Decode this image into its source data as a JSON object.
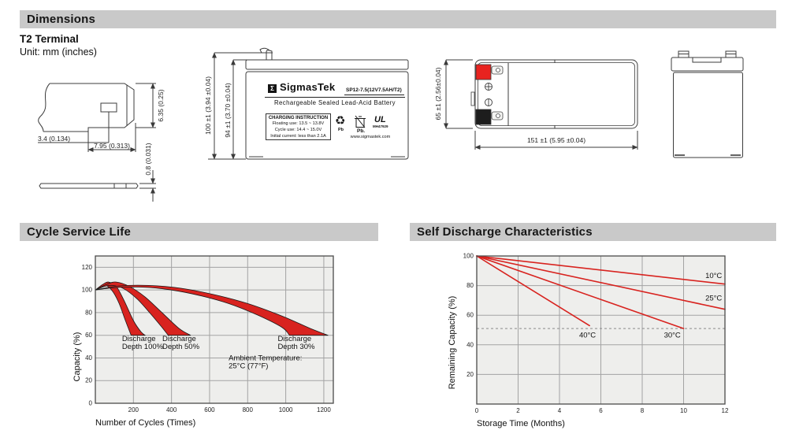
{
  "sections": {
    "dimensions": {
      "title": "Dimensions",
      "subtitle": "T2 Terminal",
      "unit_note": "Unit: mm (inches)"
    },
    "cycle": {
      "title": "Cycle Service Life"
    },
    "self_discharge": {
      "title": "Self Discharge Characteristics"
    }
  },
  "terminal_drawing": {
    "dim_hole_offset": "3.4 (0.134)",
    "dim_tab_width": "7.95 (0.313)",
    "dim_tab_height": "6.35 (0.25)",
    "dim_thickness": "0.8 (0.031)"
  },
  "front_view": {
    "dim_total_height": "100 ±1 (3.94 ±0.04)",
    "dim_case_height": "94 ±1 (3.70 ±0.04)",
    "logo_glyph": "Σ",
    "brand": "SigmasTek",
    "model": "SP12-7.5(12V7.5AH/T2)",
    "product_line": "Rechargeable Sealed Lead-Acid Battery",
    "charging_title": "CHARGING INSTRUCTION",
    "charging_line1": "Floating use: 13.5 ~ 13.8V",
    "charging_line2": "Cycle use: 14.4 ~ 15.0V",
    "charging_line3": "Initial current: less than 2.1A",
    "recycle_icon_glyph": "♻",
    "pb_recycle_label": "Pb",
    "pb_trash_label": "Pb.",
    "ul_mark": "UL",
    "ul_code": "MH47929",
    "website": "www.sigmastek.com"
  },
  "top_view": {
    "dim_height": "65 ±1 (2.56±0.04)",
    "dim_width": "151 ±1 (5.95 ±0.04)"
  },
  "colors": {
    "accent_red": "#d8231f",
    "terminal_red": "#e8231f",
    "terminal_black": "#1d1d1d",
    "section_bar": "#c9c9c9",
    "plot_bg": "#eeeeec",
    "grid": "#a3a3a3",
    "plot_border": "#4a4a4a"
  },
  "chart_data": [
    {
      "type": "area",
      "title": "Cycle Service Life",
      "xlabel": "Number of Cycles (Times)",
      "ylabel": "Capacity (%)",
      "xlim": [
        0,
        1250
      ],
      "ylim": [
        0,
        130
      ],
      "x_ticks": [
        200,
        400,
        600,
        800,
        1000,
        1200
      ],
      "y_ticks": [
        0,
        20,
        40,
        60,
        80,
        100,
        120
      ],
      "grid": true,
      "legend_position": "none",
      "bands": [
        {
          "name": "Discharge Depth 100%",
          "upper": [
            [
              0,
              100
            ],
            [
              40,
              105
            ],
            [
              70,
              107
            ],
            [
              110,
              103
            ],
            [
              150,
              91
            ],
            [
              200,
              73
            ],
            [
              240,
              63
            ],
            [
              262,
              60
            ]
          ],
          "lower": [
            [
              0,
              100
            ],
            [
              30,
              102
            ],
            [
              55,
              104
            ],
            [
              90,
              99
            ],
            [
              125,
              88
            ],
            [
              160,
              72
            ],
            [
              188,
              60
            ]
          ]
        },
        {
          "name": "Discharge Depth 50%",
          "upper": [
            [
              0,
              100
            ],
            [
              60,
              105
            ],
            [
              110,
              107
            ],
            [
              180,
              103
            ],
            [
              260,
              94
            ],
            [
              350,
              80
            ],
            [
              440,
              66
            ],
            [
              500,
              60
            ]
          ],
          "lower": [
            [
              0,
              100
            ],
            [
              45,
              103
            ],
            [
              90,
              104
            ],
            [
              150,
              101
            ],
            [
              220,
              92
            ],
            [
              290,
              79
            ],
            [
              350,
              67
            ],
            [
              383,
              60
            ]
          ]
        },
        {
          "name": "Discharge Depth 30%",
          "upper": [
            [
              0,
              100
            ],
            [
              120,
              103.5
            ],
            [
              280,
              104
            ],
            [
              450,
              101.5
            ],
            [
              620,
              96
            ],
            [
              800,
              88
            ],
            [
              980,
              77
            ],
            [
              1130,
              66
            ],
            [
              1222,
              60
            ]
          ],
          "lower": [
            [
              0,
              100
            ],
            [
              100,
              102
            ],
            [
              250,
              102.5
            ],
            [
              400,
              100
            ],
            [
              550,
              95
            ],
            [
              700,
              88
            ],
            [
              850,
              78
            ],
            [
              980,
              67
            ],
            [
              1020,
              60
            ]
          ]
        }
      ],
      "annotations": [
        {
          "lines": [
            "Discharge",
            "Depth 100%"
          ],
          "x": 140,
          "y": 55
        },
        {
          "lines": [
            "Discharge",
            "Depth 50%"
          ],
          "x": 352,
          "y": 55
        },
        {
          "lines": [
            "Discharge",
            "Depth 30%"
          ],
          "x": 958,
          "y": 55
        },
        {
          "lines": [
            "Ambient Temperature:",
            "25°C (77°F)"
          ],
          "x": 700,
          "y": 38
        }
      ]
    },
    {
      "type": "line",
      "title": "Self Discharge Characteristics",
      "xlabel": "Storage Time (Months)",
      "ylabel": "Remaining Capacity (%)",
      "xlim": [
        0,
        12
      ],
      "ylim": [
        0,
        100
      ],
      "x_ticks": [
        0,
        2,
        4,
        6,
        8,
        10,
        12
      ],
      "y_ticks": [
        20,
        40,
        60,
        80,
        100
      ],
      "grid": true,
      "legend_position": "inline-labels",
      "series": [
        {
          "name": "10°C",
          "points": [
            [
              0,
              100
            ],
            [
              12,
              81
            ]
          ],
          "label_x": 11.05,
          "label_y": 85
        },
        {
          "name": "25°C",
          "points": [
            [
              0,
              100
            ],
            [
              12,
              64
            ]
          ],
          "label_x": 11.05,
          "label_y": 70
        },
        {
          "name": "30°C",
          "points": [
            [
              0,
              100
            ],
            [
              10,
              51
            ]
          ],
          "label_x": 9.05,
          "label_y": 45
        },
        {
          "name": "40°C",
          "points": [
            [
              0,
              100
            ],
            [
              5.45,
              53
            ]
          ],
          "label_x": 4.95,
          "label_y": 45
        }
      ],
      "reference_line": {
        "y": 51,
        "style": "dashed"
      }
    }
  ]
}
